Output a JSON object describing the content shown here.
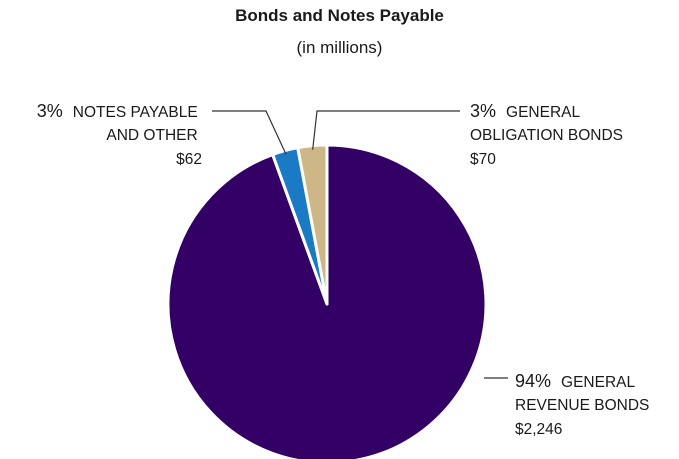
{
  "chart_data": {
    "type": "pie",
    "title": "Bonds and Notes Payable",
    "subtitle": "(in millions)",
    "slices": [
      {
        "label_lines": [
          "GENERAL",
          "REVENUE BONDS"
        ],
        "percent": "94%",
        "value": 2246,
        "value_label": "$2,246",
        "color": "#330066"
      },
      {
        "label_lines": [
          "NOTES PAYABLE",
          "AND OTHER"
        ],
        "percent": "3%",
        "value": 62,
        "value_label": "$62",
        "color": "#1a7ac4"
      },
      {
        "label_lines": [
          "GENERAL",
          "OBLIGATION BONDS"
        ],
        "percent": "3%",
        "value": 70,
        "value_label": "$70",
        "color": "#cdb787"
      }
    ],
    "start": "top, clockwise from General Revenue Bonds"
  }
}
